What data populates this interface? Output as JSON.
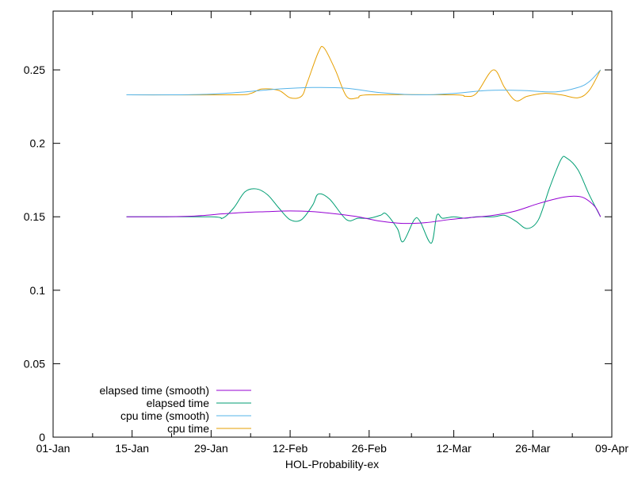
{
  "chart_data": {
    "type": "line",
    "title": "",
    "xlabel": "HOL-Probability-ex",
    "ylabel": "",
    "xlim": [
      "2024-01-01",
      "2024-04-09"
    ],
    "ylim": [
      0,
      0.29
    ],
    "x_ticks": [
      {
        "date": "2024-01-01",
        "label": "01-Jan"
      },
      {
        "date": "2024-01-15",
        "label": "15-Jan"
      },
      {
        "date": "2024-01-29",
        "label": "29-Jan"
      },
      {
        "date": "2024-02-12",
        "label": "12-Feb"
      },
      {
        "date": "2024-02-26",
        "label": "26-Feb"
      },
      {
        "date": "2024-03-12",
        "label": "12-Mar"
      },
      {
        "date": "2024-03-26",
        "label": "26-Mar"
      },
      {
        "date": "2024-04-09",
        "label": "09-Apr"
      }
    ],
    "y_ticks": [
      {
        "value": 0,
        "label": "0"
      },
      {
        "value": 0.05,
        "label": "0.05"
      },
      {
        "value": 0.1,
        "label": "0.1"
      },
      {
        "value": 0.15,
        "label": "0.15"
      },
      {
        "value": 0.2,
        "label": "0.2"
      },
      {
        "value": 0.25,
        "label": "0.25"
      }
    ],
    "grid": false,
    "legend_position": "bottom-left",
    "series": [
      {
        "name": "elapsed time (smooth)",
        "color": "#9400d3",
        "points": [
          [
            "2024-01-14",
            0.15
          ],
          [
            "2024-01-20",
            0.15
          ],
          [
            "2024-01-26",
            0.1505
          ],
          [
            "2024-01-31",
            0.152
          ],
          [
            "2024-02-04",
            0.153
          ],
          [
            "2024-02-08",
            0.1535
          ],
          [
            "2024-02-12",
            0.154
          ],
          [
            "2024-02-16",
            0.1535
          ],
          [
            "2024-02-20",
            0.152
          ],
          [
            "2024-02-24",
            0.15
          ],
          [
            "2024-02-28",
            0.147
          ],
          [
            "2024-03-03",
            0.1455
          ],
          [
            "2024-03-07",
            0.146
          ],
          [
            "2024-03-11",
            0.148
          ],
          [
            "2024-03-15",
            0.1495
          ],
          [
            "2024-03-19",
            0.151
          ],
          [
            "2024-03-23",
            0.154
          ],
          [
            "2024-03-27",
            0.159
          ],
          [
            "2024-03-31",
            0.163
          ],
          [
            "2024-04-02",
            0.164
          ],
          [
            "2024-04-04",
            0.163
          ],
          [
            "2024-04-06",
            0.157
          ],
          [
            "2024-04-07",
            0.15
          ]
        ]
      },
      {
        "name": "elapsed time",
        "color": "#009e73",
        "points": [
          [
            "2024-01-14",
            0.15
          ],
          [
            "2024-01-29",
            0.15
          ],
          [
            "2024-01-31",
            0.149
          ],
          [
            "2024-02-02",
            0.156
          ],
          [
            "2024-02-04",
            0.167
          ],
          [
            "2024-02-06",
            0.169
          ],
          [
            "2024-02-08",
            0.165
          ],
          [
            "2024-02-10",
            0.156
          ],
          [
            "2024-02-12",
            0.148
          ],
          [
            "2024-02-14",
            0.148
          ],
          [
            "2024-02-16",
            0.158
          ],
          [
            "2024-02-17",
            0.1655
          ],
          [
            "2024-02-19",
            0.162
          ],
          [
            "2024-02-22",
            0.148
          ],
          [
            "2024-02-24",
            0.149
          ],
          [
            "2024-02-26",
            0.149
          ],
          [
            "2024-02-28",
            0.151
          ],
          [
            "2024-02-29",
            0.152
          ],
          [
            "2024-03-02",
            0.142
          ],
          [
            "2024-03-03",
            0.133
          ],
          [
            "2024-03-05",
            0.148
          ],
          [
            "2024-03-06",
            0.147
          ],
          [
            "2024-03-08",
            0.132
          ],
          [
            "2024-03-09",
            0.151
          ],
          [
            "2024-03-10",
            0.149
          ],
          [
            "2024-03-12",
            0.15
          ],
          [
            "2024-03-14",
            0.149
          ],
          [
            "2024-03-16",
            0.15
          ],
          [
            "2024-03-19",
            0.15
          ],
          [
            "2024-03-21",
            0.151
          ],
          [
            "2024-03-23",
            0.147
          ],
          [
            "2024-03-25",
            0.142
          ],
          [
            "2024-03-27",
            0.148
          ],
          [
            "2024-03-29",
            0.17
          ],
          [
            "2024-03-31",
            0.189
          ],
          [
            "2024-04-01",
            0.19
          ],
          [
            "2024-04-03",
            0.182
          ],
          [
            "2024-04-05",
            0.165
          ],
          [
            "2024-04-07",
            0.15
          ]
        ]
      },
      {
        "name": "cpu time (smooth)",
        "color": "#56b4e9",
        "points": [
          [
            "2024-01-14",
            0.233
          ],
          [
            "2024-01-22",
            0.233
          ],
          [
            "2024-01-29",
            0.2335
          ],
          [
            "2024-02-04",
            0.235
          ],
          [
            "2024-02-10",
            0.237
          ],
          [
            "2024-02-16",
            0.238
          ],
          [
            "2024-02-22",
            0.2375
          ],
          [
            "2024-02-28",
            0.2345
          ],
          [
            "2024-03-06",
            0.233
          ],
          [
            "2024-03-12",
            0.234
          ],
          [
            "2024-03-18",
            0.236
          ],
          [
            "2024-03-24",
            0.236
          ],
          [
            "2024-03-30",
            0.235
          ],
          [
            "2024-04-03",
            0.238
          ],
          [
            "2024-04-05",
            0.242
          ],
          [
            "2024-04-07",
            0.25
          ]
        ]
      },
      {
        "name": "cpu time",
        "color": "#e69f00",
        "points": [
          [
            "2024-01-14",
            0.233
          ],
          [
            "2024-02-02",
            0.233
          ],
          [
            "2024-02-05",
            0.234
          ],
          [
            "2024-02-07",
            0.237
          ],
          [
            "2024-02-10",
            0.236
          ],
          [
            "2024-02-12",
            0.231
          ],
          [
            "2024-02-14",
            0.232
          ],
          [
            "2024-02-15",
            0.241
          ],
          [
            "2024-02-17",
            0.262
          ],
          [
            "2024-02-18",
            0.265
          ],
          [
            "2024-02-20",
            0.25
          ],
          [
            "2024-02-22",
            0.232
          ],
          [
            "2024-02-24",
            0.231
          ],
          [
            "2024-02-26",
            0.233
          ],
          [
            "2024-03-12",
            0.233
          ],
          [
            "2024-03-14",
            0.232
          ],
          [
            "2024-03-16",
            0.234
          ],
          [
            "2024-03-19",
            0.25
          ],
          [
            "2024-03-21",
            0.238
          ],
          [
            "2024-03-23",
            0.229
          ],
          [
            "2024-03-25",
            0.232
          ],
          [
            "2024-03-28",
            0.234
          ],
          [
            "2024-03-31",
            0.233
          ],
          [
            "2024-04-03",
            0.231
          ],
          [
            "2024-04-05",
            0.236
          ],
          [
            "2024-04-07",
            0.25
          ]
        ]
      }
    ]
  }
}
